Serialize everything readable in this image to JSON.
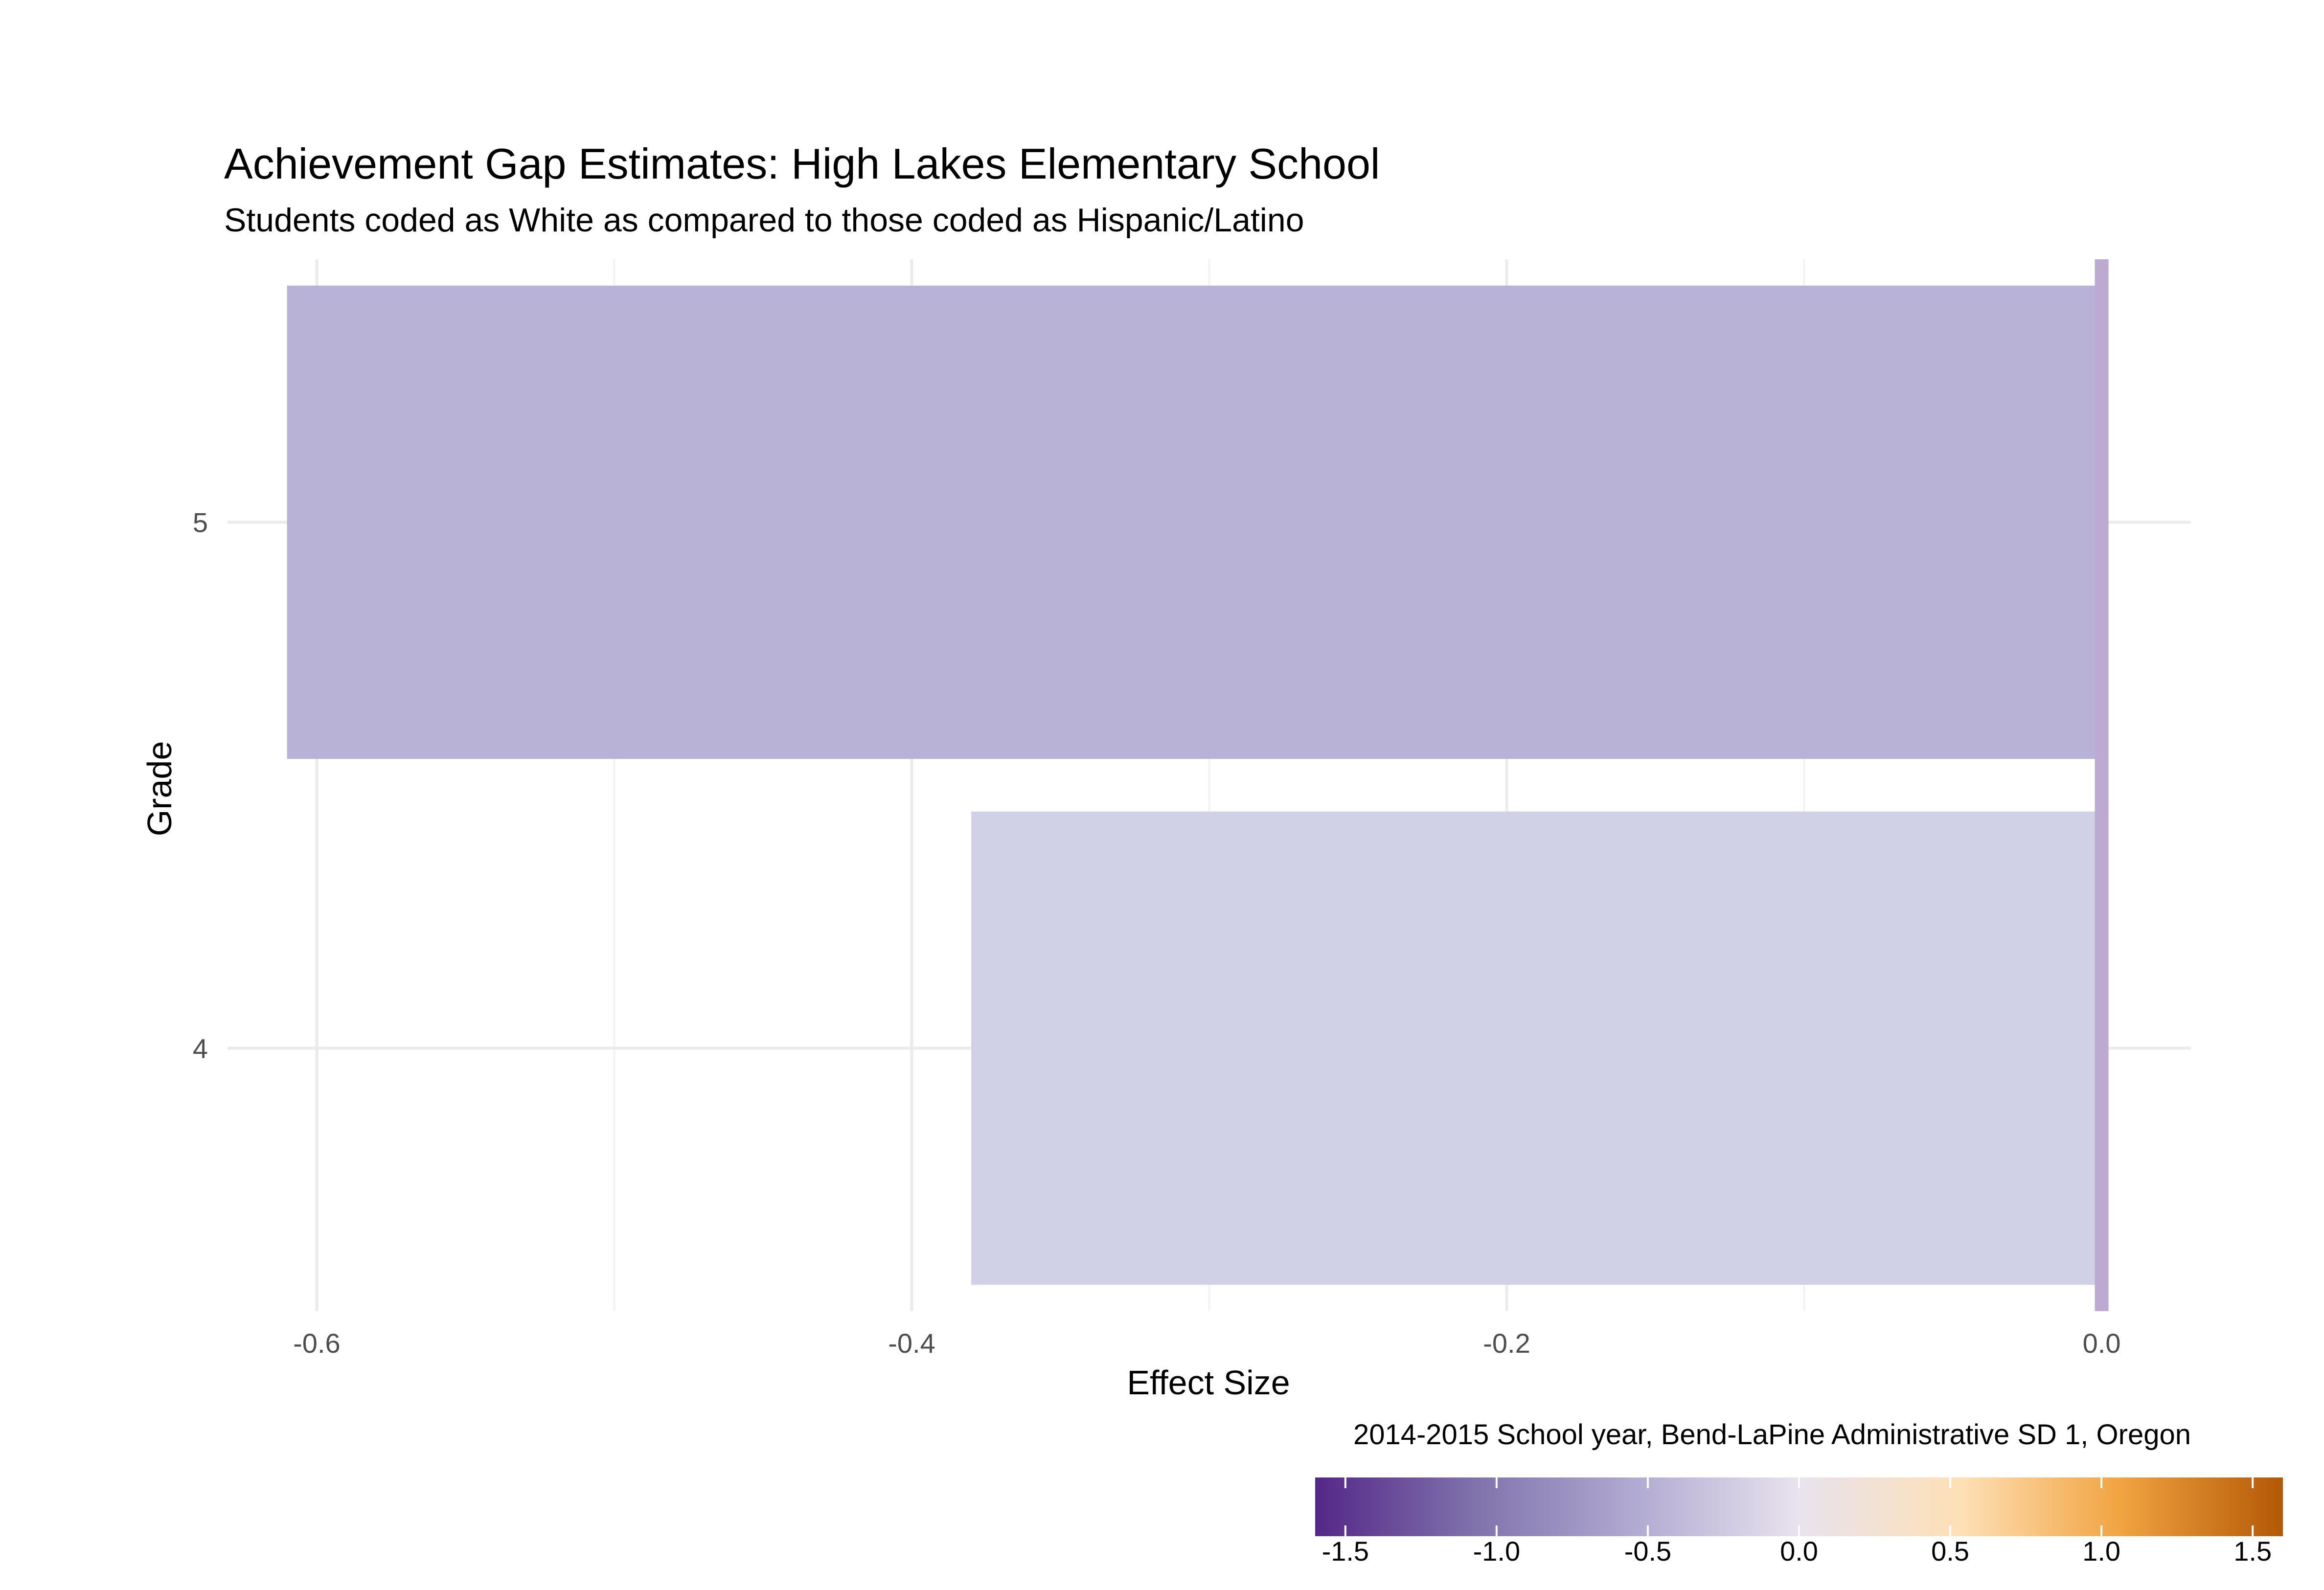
{
  "chart_data": {
    "type": "bar",
    "orientation": "horizontal",
    "title": "Achievement Gap Estimates: High Lakes Elementary School",
    "subtitle": "Students coded as White as compared to those coded as Hispanic/Latino",
    "caption": "2014-2015 School year, Bend-LaPine Administrative SD 1, Oregon",
    "xlabel": "Effect Size",
    "ylabel": "Grade",
    "categories": [
      "4",
      "5"
    ],
    "values": [
      -0.38,
      -0.61
    ],
    "bar_colors": [
      "#d0d1e6",
      "#b8b2d7"
    ],
    "xlim": [
      -0.63,
      0.03
    ],
    "x_ticks": [
      -0.6,
      -0.4,
      -0.2,
      0.0
    ],
    "x_tick_labels": [
      "-0.6",
      "-0.4",
      "-0.2",
      "0.0"
    ],
    "reference_line": {
      "x": 0.0,
      "color": "#bcaad2"
    },
    "grid": true,
    "legend": {
      "type": "colorbar",
      "placement": "bottom",
      "range": [
        -1.6,
        1.6
      ],
      "ticks": [
        -1.5,
        -1.0,
        -0.5,
        0.0,
        0.5,
        1.0,
        1.5
      ],
      "tick_labels": [
        "-1.5",
        "-1.0",
        "-0.5",
        "0.0",
        "0.5",
        "1.0",
        "1.5"
      ],
      "colors": [
        "#542788",
        "#8073ac",
        "#b2abd2",
        "#e8e3ee",
        "#fee0b6",
        "#f1a340",
        "#b35806"
      ]
    }
  }
}
